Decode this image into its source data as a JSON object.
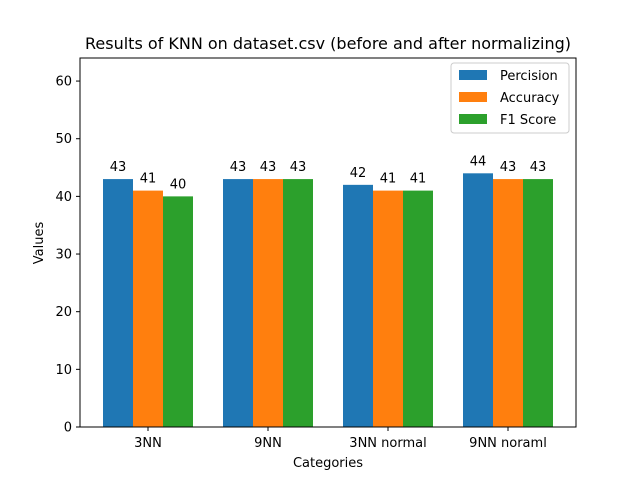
{
  "chart_data": {
    "type": "bar",
    "title": "Results of KNN on dataset.csv (before and after normalizing)",
    "xlabel": "Categories",
    "ylabel": "Values",
    "categories": [
      "3NN",
      "9NN",
      "3NN normal",
      "9NN noraml"
    ],
    "series": [
      {
        "name": "Percision",
        "color": "#1f77b4",
        "values": [
          43,
          43,
          42,
          44
        ]
      },
      {
        "name": "Accuracy",
        "color": "#ff7f0e",
        "values": [
          41,
          43,
          41,
          43
        ]
      },
      {
        "name": "F1 Score",
        "color": "#2ca02c",
        "values": [
          40,
          43,
          41,
          43
        ]
      }
    ],
    "ylim": [
      0,
      64
    ],
    "yticks": [
      0,
      10,
      20,
      30,
      40,
      50,
      60
    ],
    "grid": false,
    "legend_position": "top-right"
  }
}
